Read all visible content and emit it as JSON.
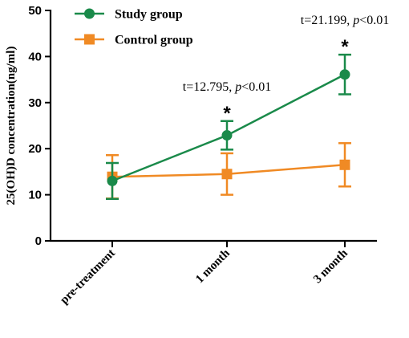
{
  "chart_data": {
    "type": "line",
    "categories": [
      "pre-treatment",
      "1 month",
      "3 month"
    ],
    "ylabel": "25(OH)D concentration(ng/ml)",
    "ylim": [
      0,
      50
    ],
    "yticks": [
      0,
      10,
      20,
      30,
      40,
      50
    ],
    "series": [
      {
        "name": "Study group",
        "color": "#1a8a4a",
        "marker": "circle",
        "values": [
          13.0,
          22.9,
          36.1
        ],
        "err": [
          3.9,
          3.1,
          4.3
        ]
      },
      {
        "name": "Control group",
        "color": "#f08a24",
        "marker": "square",
        "values": [
          13.9,
          14.5,
          16.5
        ],
        "err": [
          4.7,
          4.5,
          4.7
        ]
      }
    ],
    "annotations": [
      {
        "category": "1 month",
        "star": "*",
        "t_text": "t=12.795, ",
        "p_italic": "p",
        "p_rest": "<0.01"
      },
      {
        "category": "3 month",
        "star": "*",
        "t_text": "t=21.199, ",
        "p_italic": "p",
        "p_rest": "<0.01"
      }
    ],
    "legend_position": "top-left"
  }
}
